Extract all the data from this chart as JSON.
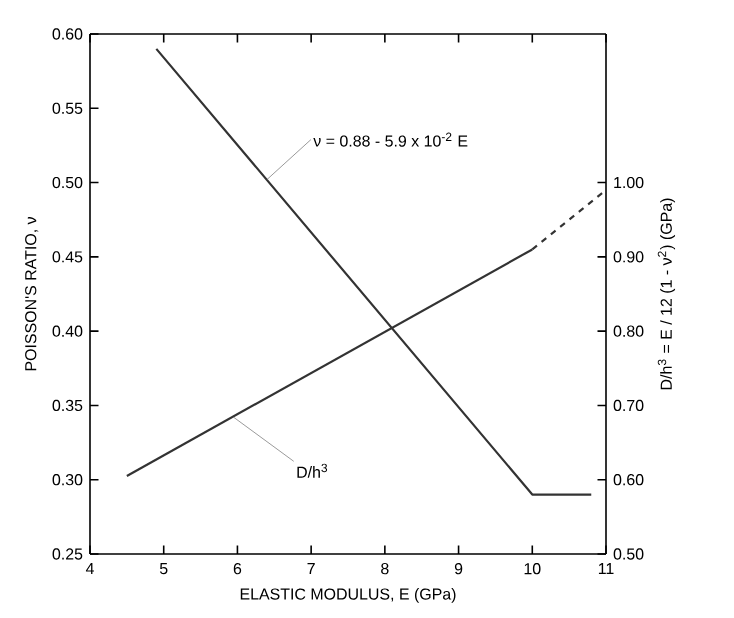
{
  "chart_data": {
    "type": "line",
    "xlabel": "ELASTIC MODULUS, E (GPa)",
    "ylabel": "POISSON'S RATIO, ν",
    "y2label": "D/h$^{3}$ = E / 12 (1 - ν$^{2}$)  (GPa)",
    "xlim": [
      4,
      11
    ],
    "xticks": [
      4,
      5,
      6,
      7,
      8,
      9,
      10,
      11
    ],
    "ylim": [
      0.25,
      0.6
    ],
    "yticks": [
      {
        "value": 0.25,
        "label": "0.25"
      },
      {
        "value": 0.3,
        "label": "0.30"
      },
      {
        "value": 0.35,
        "label": "0.35"
      },
      {
        "value": 0.4,
        "label": "0.40"
      },
      {
        "value": 0.45,
        "label": "0.45"
      },
      {
        "value": 0.5,
        "label": "0.50"
      },
      {
        "value": 0.55,
        "label": "0.55"
      },
      {
        "value": 0.6,
        "label": "0.60"
      }
    ],
    "y2lim": [
      0.5,
      1.2
    ],
    "y2ticks": [
      {
        "value": 0.5,
        "label": "0.50"
      },
      {
        "value": 0.6,
        "label": "0.60"
      },
      {
        "value": 0.7,
        "label": "0.70"
      },
      {
        "value": 0.8,
        "label": "0.80"
      },
      {
        "value": 0.9,
        "label": "0.90"
      },
      {
        "value": 1.0,
        "label": "1.00"
      }
    ],
    "series": [
      {
        "color": "#333333",
        "x": [
          4.9,
          10,
          10.8
        ],
        "values": [
          0.59,
          0.29,
          0.29
        ]
      },
      {
        "color": "#333333",
        "axis": "y2",
        "x": [
          4.5,
          10
        ],
        "values": [
          0.605,
          0.91
        ]
      },
      {
        "color": "#333333",
        "axis": "y2",
        "line_style": "dashed",
        "x": [
          10,
          11
        ],
        "values": [
          0.91,
          0.99
        ]
      }
    ],
    "annotations": [
      {
        "text": "ν = 0.88 - 5.9 x 10$^{-2}$ E",
        "x": 6.4,
        "y": 0.502
      },
      {
        "text": "D/h$^{3}$",
        "x": 5.95,
        "y": 0.342
      }
    ],
    "grid": false,
    "marker": "none"
  }
}
